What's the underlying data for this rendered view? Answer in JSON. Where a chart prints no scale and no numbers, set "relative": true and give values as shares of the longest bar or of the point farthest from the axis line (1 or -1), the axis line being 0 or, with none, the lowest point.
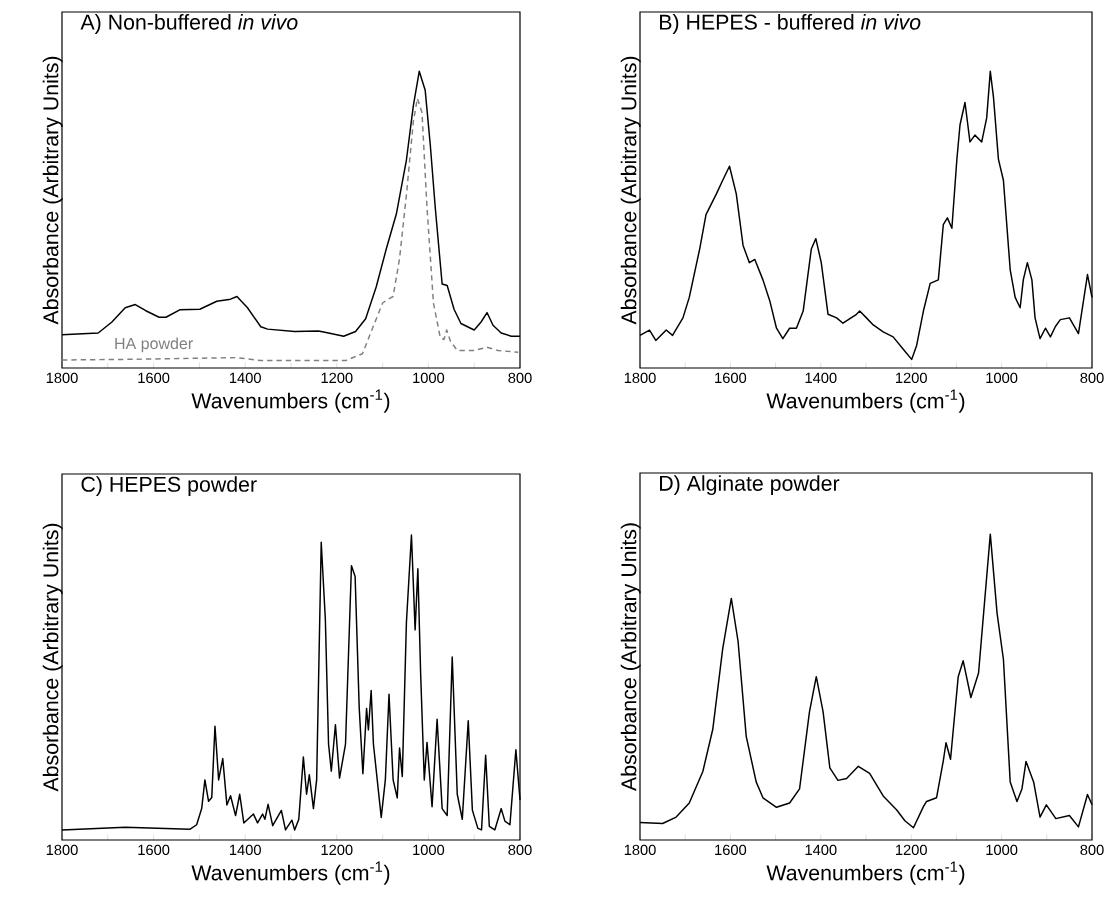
{
  "chart_data": [
    {
      "type": "line",
      "title": "A) Non-buffered *in vivo*",
      "xlabel": "Wavenumbers (cm$^{-1}$)",
      "ylabel": "Absorbance (Arbitrary Units)",
      "relative": true,
      "tick_labels": "x",
      "xlim": [
        1800,
        800
      ],
      "xticks": [
        1800,
        {
          "value": 1700,
          "label": null
        },
        1600,
        {
          "value": 1500,
          "label": null
        },
        1400,
        {
          "value": 1300,
          "label": null
        },
        1200,
        {
          "value": 1100,
          "label": null
        },
        1000,
        {
          "value": 900,
          "label": null
        },
        800
      ],
      "series": [
        {
          "color": "#000000",
          "x": [
            1800,
            1721,
            1691,
            1662,
            1640,
            1617,
            1588,
            1573,
            1543,
            1499,
            1462,
            1432,
            1418,
            1395,
            1366,
            1351,
            1292,
            1240,
            1218,
            1185,
            1159,
            1137,
            1114,
            1092,
            1070,
            1048,
            1033,
            1020,
            1007,
            996,
            985,
            970,
            959,
            944,
            929,
            900,
            885,
            872,
            859,
            841,
            819,
            800
          ],
          "values": [
            0.112,
            0.118,
            0.155,
            0.203,
            0.214,
            0.193,
            0.171,
            0.171,
            0.196,
            0.198,
            0.225,
            0.232,
            0.241,
            0.203,
            0.139,
            0.131,
            0.123,
            0.125,
            0.118,
            0.107,
            0.123,
            0.166,
            0.273,
            0.401,
            0.519,
            0.701,
            0.883,
            1,
            0.936,
            0.754,
            0.54,
            0.283,
            0.278,
            0.198,
            0.15,
            0.128,
            0.155,
            0.187,
            0.144,
            0.118,
            0.107,
            0.107
          ]
        },
        {
          "name": "HA powder",
          "color": "#808080",
          "line_style": "dashed",
          "x": [
            1800,
            1662,
            1418,
            1366,
            1181,
            1144,
            1122,
            1100,
            1088,
            1077,
            1063,
            1048,
            1033,
            1024,
            1014,
            1003,
            989,
            974,
            966,
            960,
            952,
            937,
            900,
            872,
            848,
            804
          ],
          "values": [
            0.027,
            0.029,
            0.035,
            0.025,
            0.025,
            0.048,
            0.134,
            0.219,
            0.232,
            0.241,
            0.369,
            0.583,
            0.829,
            0.909,
            0.861,
            0.54,
            0.219,
            0.102,
            0.096,
            0.128,
            0.091,
            0.059,
            0.059,
            0.07,
            0.059,
            0.053
          ]
        }
      ]
    },
    {
      "type": "line",
      "title": "B) HEPES - buffered *in vivo*",
      "xlabel": "Wavenumbers (cm$^{-1}$)",
      "ylabel": "Absorbance (Arbitrary Units)",
      "relative": true,
      "tick_labels": "x",
      "xlim": [
        1800,
        800
      ],
      "xticks": [
        1800,
        {
          "value": 1700,
          "label": null
        },
        1600,
        {
          "value": 1500,
          "label": null
        },
        1400,
        {
          "value": 1300,
          "label": null
        },
        1200,
        {
          "value": 1100,
          "label": null
        },
        1000,
        {
          "value": 900,
          "label": null
        },
        800
      ],
      "series": [
        {
          "color": "#000000",
          "x": [
            1800,
            1779,
            1765,
            1742,
            1728,
            1705,
            1691,
            1668,
            1654,
            1631,
            1617,
            1602,
            1587,
            1572,
            1558,
            1546,
            1528,
            1513,
            1498,
            1484,
            1469,
            1454,
            1439,
            1421,
            1411,
            1399,
            1384,
            1365,
            1351,
            1321,
            1314,
            1299,
            1284,
            1262,
            1240,
            1218,
            1199,
            1188,
            1173,
            1158,
            1140,
            1129,
            1120,
            1110,
            1099,
            1092,
            1081,
            1070,
            1059,
            1044,
            1033,
            1025,
            1018,
            1007,
            996,
            981,
            970,
            959,
            952,
            943,
            933,
            926,
            915,
            903,
            892,
            881,
            870,
            850,
            830,
            810,
            800
          ],
          "values": [
            0.11,
            0.128,
            0.093,
            0.128,
            0.11,
            0.169,
            0.238,
            0.401,
            0.517,
            0.587,
            0.633,
            0.68,
            0.587,
            0.413,
            0.355,
            0.366,
            0.297,
            0.227,
            0.134,
            0.099,
            0.134,
            0.134,
            0.192,
            0.401,
            0.436,
            0.355,
            0.181,
            0.169,
            0.151,
            0.181,
            0.192,
            0.169,
            0.145,
            0.122,
            0.105,
            0.064,
            0.029,
            0.076,
            0.192,
            0.285,
            0.297,
            0.483,
            0.506,
            0.471,
            0.703,
            0.82,
            0.895,
            0.762,
            0.785,
            0.762,
            0.843,
            1,
            0.913,
            0.703,
            0.633,
            0.331,
            0.238,
            0.203,
            0.297,
            0.355,
            0.297,
            0.169,
            0.099,
            0.134,
            0.105,
            0.14,
            0.163,
            0.169,
            0.116,
            0.315,
            0.238
          ]
        }
      ]
    },
    {
      "type": "line",
      "title": "C) HEPES powder",
      "xlabel": "Wavenumbers (cm$^{-1}$)",
      "ylabel": "Absorbance (Arbitrary Units)",
      "relative": true,
      "tick_labels": "x",
      "xlim": [
        1800,
        800
      ],
      "xticks": [
        1800,
        {
          "value": 1700,
          "label": null
        },
        1600,
        {
          "value": 1500,
          "label": null
        },
        1400,
        {
          "value": 1300,
          "label": null
        },
        1200,
        {
          "value": 1100,
          "label": null
        },
        1000,
        {
          "value": 900,
          "label": null
        },
        800
      ],
      "series": [
        {
          "color": "#000000",
          "x": [
            1800,
            1662,
            1521,
            1506,
            1495,
            1488,
            1480,
            1473,
            1466,
            1458,
            1449,
            1440,
            1432,
            1421,
            1412,
            1403,
            1382,
            1373,
            1362,
            1357,
            1350,
            1340,
            1321,
            1312,
            1298,
            1292,
            1283,
            1273,
            1266,
            1260,
            1251,
            1244,
            1234,
            1225,
            1218,
            1212,
            1203,
            1194,
            1181,
            1168,
            1160,
            1151,
            1143,
            1135,
            1131,
            1125,
            1120,
            1103,
            1094,
            1086,
            1077,
            1068,
            1063,
            1057,
            1048,
            1037,
            1029,
            1023,
            1017,
            1009,
            1003,
            992,
            981,
            970,
            959,
            948,
            937,
            926,
            913,
            904,
            892,
            884,
            875,
            867,
            855,
            841,
            833,
            822,
            809,
            800
          ],
          "values": [
            0.033,
            0.042,
            0.035,
            0.05,
            0.103,
            0.197,
            0.127,
            0.139,
            0.373,
            0.197,
            0.267,
            0.115,
            0.145,
            0.08,
            0.15,
            0.056,
            0.085,
            0.056,
            0.085,
            0.068,
            0.117,
            0.047,
            0.097,
            0.033,
            0.065,
            0.033,
            0.068,
            0.272,
            0.15,
            0.214,
            0.103,
            0.197,
            0.976,
            0.724,
            0.314,
            0.226,
            0.378,
            0.203,
            0.314,
            0.899,
            0.864,
            0.431,
            0.217,
            0.431,
            0.361,
            0.49,
            0.314,
            0.074,
            0.197,
            0.478,
            0.197,
            0.138,
            0.302,
            0.208,
            0.713,
            1,
            0.689,
            0.889,
            0.548,
            0.197,
            0.32,
            0.109,
            0.396,
            0.103,
            0.08,
            0.6,
            0.15,
            0.068,
            0.391,
            0.098,
            0.038,
            0.033,
            0.278,
            0.045,
            0.033,
            0.103,
            0.062,
            0.05,
            0.296,
            0.131
          ]
        }
      ]
    },
    {
      "type": "line",
      "title": "D) Alginate powder",
      "xlabel": "Wavenumbers (cm$^{-1}$)",
      "ylabel": "Absorbance (Arbitrary Units)",
      "relative": true,
      "tick_labels": "x",
      "xlim": [
        1800,
        800
      ],
      "xticks": [
        1800,
        {
          "value": 1700,
          "label": null
        },
        1600,
        {
          "value": 1500,
          "label": null
        },
        1400,
        {
          "value": 1300,
          "label": null
        },
        1200,
        {
          "value": 1100,
          "label": null
        },
        1000,
        {
          "value": 900,
          "label": null
        },
        800
      ],
      "series": [
        {
          "color": "#000000",
          "x": [
            1800,
            1750,
            1720,
            1691,
            1661,
            1639,
            1617,
            1598,
            1583,
            1565,
            1543,
            1528,
            1498,
            1469,
            1447,
            1425,
            1410,
            1395,
            1380,
            1362,
            1343,
            1317,
            1292,
            1262,
            1232,
            1214,
            1195,
            1173,
            1166,
            1144,
            1129,
            1123,
            1113,
            1096,
            1085,
            1068,
            1051,
            1025,
            1010,
            996,
            981,
            966,
            955,
            946,
            929,
            915,
            901,
            880,
            850,
            830,
            810,
            800
          ],
          "values": [
            0.057,
            0.054,
            0.075,
            0.121,
            0.224,
            0.362,
            0.626,
            0.79,
            0.649,
            0.339,
            0.19,
            0.138,
            0.107,
            0.121,
            0.167,
            0.42,
            0.534,
            0.42,
            0.236,
            0.195,
            0.201,
            0.241,
            0.218,
            0.144,
            0.098,
            0.063,
            0.04,
            0.109,
            0.126,
            0.138,
            0.259,
            0.318,
            0.264,
            0.534,
            0.586,
            0.466,
            0.546,
            1,
            0.741,
            0.591,
            0.19,
            0.126,
            0.167,
            0.257,
            0.189,
            0.075,
            0.115,
            0.07,
            0.08,
            0.043,
            0.149,
            0.115
          ]
        }
      ]
    }
  ]
}
